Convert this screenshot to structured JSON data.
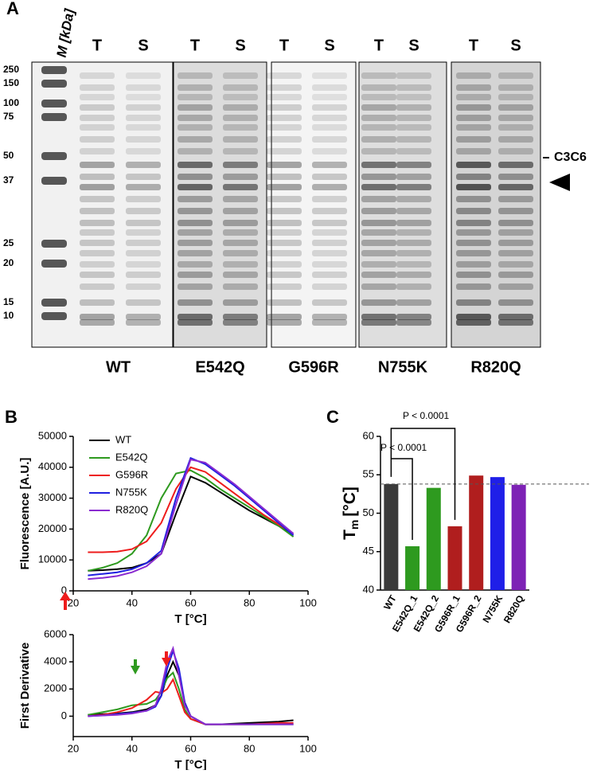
{
  "gel": {
    "panel_label": "A",
    "marker_label": "M [kDa]",
    "marker_sizes": [
      250,
      150,
      100,
      75,
      50,
      37,
      25,
      20,
      15,
      10
    ],
    "lane_labels": [
      "T",
      "S"
    ],
    "samples": [
      "WT",
      "E542Q",
      "G596R",
      "N755K",
      "R820Q"
    ],
    "annotation": "C3C6"
  },
  "panel_labels": [
    "B",
    "C"
  ],
  "chart_data": [
    {
      "type": "line",
      "ylabel": "Fluorescence [A.U.]",
      "xlabel": "T [°C]",
      "x": [
        25,
        30,
        35,
        40,
        45,
        50,
        55,
        60,
        65,
        70,
        75,
        80,
        85,
        90,
        95
      ],
      "xlim": [
        20,
        100
      ],
      "xticks": [
        20,
        40,
        60,
        80,
        100
      ],
      "ylim": [
        0,
        50000
      ],
      "yticks": [
        0,
        10000,
        20000,
        30000,
        40000,
        50000
      ],
      "legend": "upper left",
      "series": [
        {
          "name": "WT",
          "color": "#000000",
          "values": [
            6500,
            6700,
            7000,
            7500,
            9000,
            12000,
            25000,
            37000,
            35000,
            32000,
            29000,
            26000,
            23500,
            21000,
            18500
          ]
        },
        {
          "name": "E542Q",
          "color": "#2e9a1f",
          "values": [
            6500,
            7500,
            9000,
            12000,
            18000,
            30000,
            38000,
            39000,
            36500,
            33000,
            30000,
            27000,
            24000,
            21000,
            17500
          ]
        },
        {
          "name": "G596R",
          "color": "#ee1c1c",
          "values": [
            12500,
            12500,
            12700,
            13500,
            16000,
            22000,
            33000,
            40000,
            38500,
            35000,
            31500,
            28000,
            24500,
            21500,
            18500
          ]
        },
        {
          "name": "N755K",
          "color": "#1f1fe0",
          "values": [
            5000,
            5500,
            6000,
            7000,
            9000,
            13000,
            30000,
            43000,
            41000,
            37500,
            34000,
            30000,
            26000,
            22000,
            18000
          ]
        },
        {
          "name": "R820Q",
          "color": "#8a2bd0",
          "values": [
            3800,
            4200,
            4800,
            6000,
            8000,
            12000,
            28000,
            42500,
            41500,
            38000,
            34500,
            30500,
            26500,
            22500,
            18500
          ]
        }
      ]
    },
    {
      "type": "line",
      "ylabel": "First Derivative",
      "xlabel": "T [°C]",
      "x": [
        25,
        30,
        35,
        40,
        45,
        48,
        50,
        52,
        54,
        56,
        58,
        60,
        65,
        70,
        80,
        90,
        95
      ],
      "xlim": [
        20,
        100
      ],
      "xticks": [
        20,
        40,
        60,
        80,
        100
      ],
      "ylim": [
        -1500,
        6000
      ],
      "yticks": [
        0,
        2000,
        4000,
        6000
      ],
      "series": [
        {
          "name": "WT",
          "color": "#000000",
          "values": [
            100,
            150,
            200,
            300,
            500,
            800,
            1500,
            3000,
            4000,
            3000,
            1000,
            0,
            -600,
            -600,
            -500,
            -400,
            -300
          ]
        },
        {
          "name": "E542Q",
          "color": "#2e9a1f",
          "values": [
            100,
            300,
            500,
            800,
            900,
            1200,
            1800,
            2800,
            3200,
            2000,
            500,
            -200,
            -600,
            -600,
            -600,
            -600,
            -600
          ]
        },
        {
          "name": "G596R",
          "color": "#ee1c1c",
          "values": [
            0,
            100,
            300,
            600,
            1200,
            1800,
            1700,
            2000,
            2700,
            1500,
            300,
            -200,
            -600,
            -600,
            -600,
            -500,
            -500
          ]
        },
        {
          "name": "N755K",
          "color": "#1f1fe0",
          "values": [
            0,
            50,
            150,
            250,
            400,
            700,
            1500,
            3500,
            4800,
            3500,
            1000,
            0,
            -600,
            -600,
            -600,
            -600,
            -600
          ]
        },
        {
          "name": "R820Q",
          "color": "#8a2bd0",
          "values": [
            0,
            50,
            100,
            200,
            400,
            800,
            2000,
            4000,
            5000,
            3000,
            800,
            0,
            -600,
            -600,
            -600,
            -600,
            -600
          ]
        }
      ]
    },
    {
      "type": "bar",
      "ylabel": "T",
      "ylabel_subscript": "m",
      "ylabel_unit": "[°C]",
      "categories": [
        "WT",
        "E542Q_1",
        "E542Q_2",
        "G596R_1",
        "G596R_2",
        "N755K",
        "R820Q"
      ],
      "values": [
        53.8,
        45.7,
        53.3,
        48.3,
        54.9,
        54.7,
        53.7
      ],
      "colors": [
        "#3a3a3a",
        "#2e9a1f",
        "#2e9a1f",
        "#b01e1e",
        "#b01e1e",
        "#1f1fe8",
        "#7d22b5"
      ],
      "ylim": [
        40,
        60
      ],
      "yticks": [
        40,
        45,
        50,
        55,
        60
      ],
      "reference_line": 53.8,
      "annotations": [
        "P < 0.0001",
        "P < 0.0001"
      ]
    }
  ]
}
